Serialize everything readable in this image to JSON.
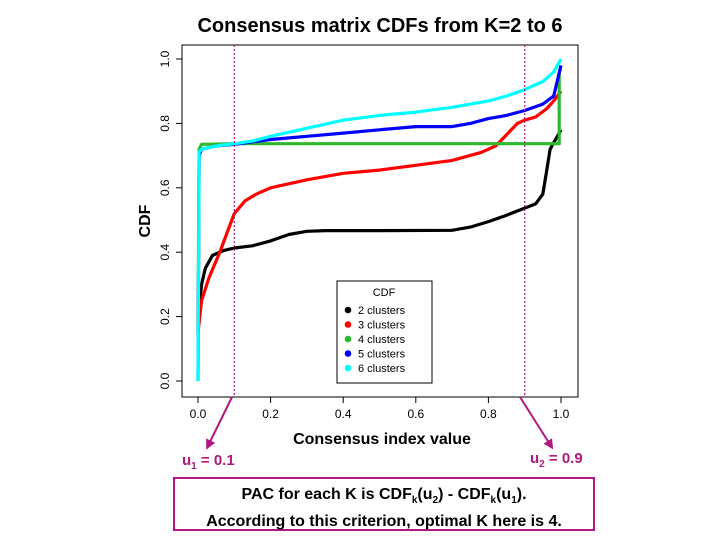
{
  "chart_data": {
    "type": "line",
    "title": "Consensus matrix CDFs from K=2 to 6",
    "xlabel": "Consensus index value",
    "ylabel": "CDF",
    "xlim": [
      0,
      1
    ],
    "ylim": [
      0,
      1
    ],
    "xticks": [
      "0.0",
      "0.2",
      "0.4",
      "0.6",
      "0.8",
      "1.0"
    ],
    "yticks": [
      "0.0",
      "0.2",
      "0.4",
      "0.6",
      "0.8",
      "1.0"
    ],
    "grid": false,
    "legend": {
      "title": "CDF",
      "position": "bottom-center"
    },
    "series": [
      {
        "name": "2 clusters",
        "color": "#000000",
        "points": [
          [
            0,
            0.2
          ],
          [
            0.01,
            0.3
          ],
          [
            0.02,
            0.35
          ],
          [
            0.04,
            0.39
          ],
          [
            0.07,
            0.405
          ],
          [
            0.1,
            0.413
          ],
          [
            0.15,
            0.42
          ],
          [
            0.2,
            0.435
          ],
          [
            0.25,
            0.455
          ],
          [
            0.3,
            0.465
          ],
          [
            0.35,
            0.467
          ],
          [
            0.5,
            0.467
          ],
          [
            0.7,
            0.468
          ],
          [
            0.75,
            0.478
          ],
          [
            0.8,
            0.495
          ],
          [
            0.85,
            0.515
          ],
          [
            0.9,
            0.537
          ],
          [
            0.93,
            0.55
          ],
          [
            0.95,
            0.58
          ],
          [
            0.96,
            0.65
          ],
          [
            0.97,
            0.72
          ],
          [
            0.98,
            0.74
          ],
          [
            0.99,
            0.76
          ],
          [
            1.0,
            0.78
          ]
        ]
      },
      {
        "name": "3 clusters",
        "color": "#ff0000",
        "points": [
          [
            0,
            0.15
          ],
          [
            0.01,
            0.25
          ],
          [
            0.03,
            0.32
          ],
          [
            0.06,
            0.4
          ],
          [
            0.08,
            0.46
          ],
          [
            0.1,
            0.52
          ],
          [
            0.13,
            0.56
          ],
          [
            0.16,
            0.58
          ],
          [
            0.2,
            0.6
          ],
          [
            0.3,
            0.625
          ],
          [
            0.4,
            0.645
          ],
          [
            0.5,
            0.655
          ],
          [
            0.6,
            0.67
          ],
          [
            0.7,
            0.685
          ],
          [
            0.78,
            0.71
          ],
          [
            0.82,
            0.73
          ],
          [
            0.85,
            0.765
          ],
          [
            0.88,
            0.8
          ],
          [
            0.9,
            0.81
          ],
          [
            0.93,
            0.82
          ],
          [
            0.96,
            0.845
          ],
          [
            0.98,
            0.87
          ],
          [
            0.99,
            0.885
          ],
          [
            1.0,
            0.9
          ]
        ]
      },
      {
        "name": "4 clusters",
        "color": "#2db82d",
        "points": [
          [
            0,
            0.15
          ],
          [
            0.003,
            0.72
          ],
          [
            0.01,
            0.735
          ],
          [
            0.1,
            0.737
          ],
          [
            0.5,
            0.737
          ],
          [
            0.995,
            0.737
          ],
          [
            0.995,
            0.96
          ],
          [
            1.0,
            0.97
          ]
        ]
      },
      {
        "name": "5 clusters",
        "color": "#0000ff",
        "points": [
          [
            0,
            0.0
          ],
          [
            0.003,
            0.7
          ],
          [
            0.01,
            0.72
          ],
          [
            0.05,
            0.73
          ],
          [
            0.1,
            0.735
          ],
          [
            0.2,
            0.75
          ],
          [
            0.3,
            0.76
          ],
          [
            0.4,
            0.77
          ],
          [
            0.5,
            0.78
          ],
          [
            0.6,
            0.79
          ],
          [
            0.7,
            0.79
          ],
          [
            0.75,
            0.8
          ],
          [
            0.8,
            0.815
          ],
          [
            0.85,
            0.825
          ],
          [
            0.9,
            0.84
          ],
          [
            0.95,
            0.86
          ],
          [
            0.98,
            0.885
          ],
          [
            1.0,
            0.98
          ]
        ]
      },
      {
        "name": "6 clusters",
        "color": "#00ffff",
        "points": [
          [
            0,
            0.0
          ],
          [
            0.003,
            0.71
          ],
          [
            0.01,
            0.72
          ],
          [
            0.05,
            0.73
          ],
          [
            0.1,
            0.737
          ],
          [
            0.15,
            0.745
          ],
          [
            0.2,
            0.76
          ],
          [
            0.3,
            0.785
          ],
          [
            0.4,
            0.81
          ],
          [
            0.5,
            0.825
          ],
          [
            0.6,
            0.835
          ],
          [
            0.7,
            0.85
          ],
          [
            0.8,
            0.87
          ],
          [
            0.85,
            0.885
          ],
          [
            0.9,
            0.905
          ],
          [
            0.95,
            0.93
          ],
          [
            0.98,
            0.96
          ],
          [
            1.0,
            1.0
          ]
        ]
      }
    ],
    "vlines": [
      {
        "x": 0.1,
        "color": "#b0177f"
      },
      {
        "x": 0.9,
        "color": "#b0177f"
      }
    ]
  },
  "annotations": {
    "u1": {
      "base": "u",
      "sub": "1",
      "rest": " = 0.1"
    },
    "u2": {
      "base": "u",
      "sub": "2",
      "rest": " = 0.9"
    },
    "pac_box": {
      "line1_pre": "PAC for each K is CDF",
      "k1": "k",
      "mid1": "(u",
      "s1": "2",
      "mid2": ") - CDF",
      "k2": "k",
      "mid3": "(u",
      "s2": "1",
      "line1_post": ").",
      "line2": "According to this criterion, optimal K here is 4."
    }
  },
  "colors": {
    "accent": "#b0177f"
  }
}
